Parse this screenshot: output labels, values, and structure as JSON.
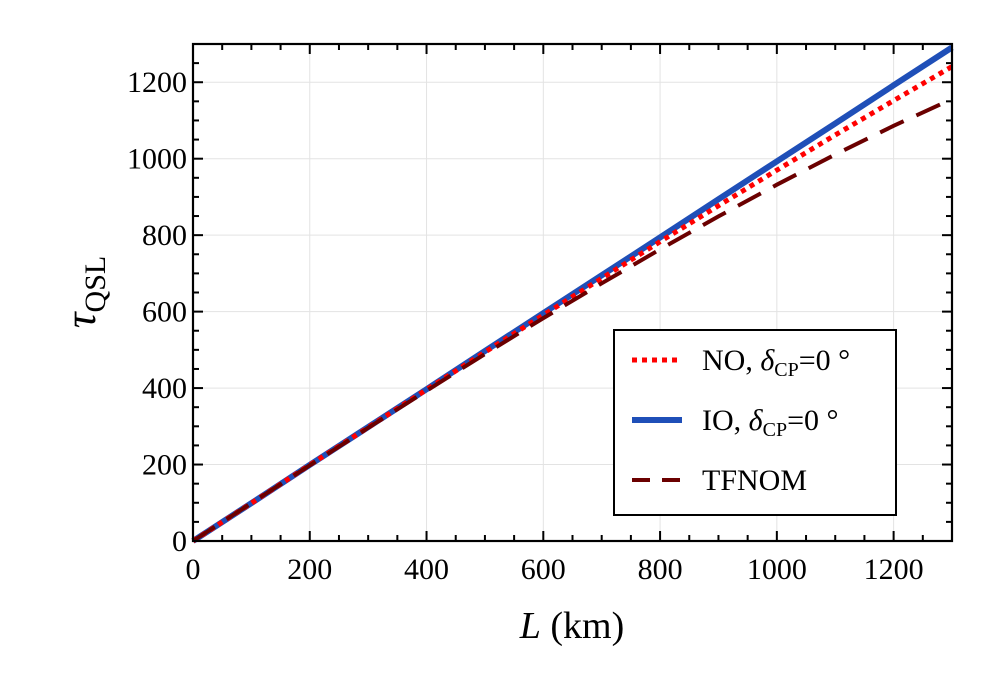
{
  "chart_data": {
    "type": "line",
    "title": "",
    "xlabel": "L (km)",
    "xlabel_var": "L",
    "xlabel_unit": "(km)",
    "ylabel": "τ_QSL",
    "ylabel_main": "τ",
    "ylabel_sub": "QSL",
    "xlim": [
      0,
      1300
    ],
    "ylim": [
      0,
      1300
    ],
    "xticks": [
      0,
      200,
      400,
      600,
      800,
      1000,
      1200
    ],
    "yticks": [
      0,
      200,
      400,
      600,
      800,
      1000,
      1200
    ],
    "grid": true,
    "legend_position": "lower-right",
    "x": [
      0,
      100,
      200,
      300,
      400,
      500,
      600,
      700,
      800,
      900,
      1000,
      1100,
      1200,
      1300
    ],
    "series": [
      {
        "name": "NO, δCP=0 °",
        "label_main": "NO, ",
        "label_delta": "δ",
        "label_sub": "CP",
        "label_tail": "=0 °",
        "color": "#ff0000",
        "style": "dotted",
        "values": [
          0,
          99,
          199,
          297,
          396,
          494,
          591,
          687,
          783,
          877,
          970,
          1062,
          1152,
          1241
        ]
      },
      {
        "name": "IO, δCP=0 °",
        "label_main": "IO, ",
        "label_delta": "δ",
        "label_sub": "CP",
        "label_tail": "=0 °",
        "color": "#1f4fb8",
        "style": "solid",
        "values": [
          0,
          99,
          199,
          298,
          397,
          497,
          596,
          695,
          794,
          894,
          993,
          1092,
          1192,
          1291
        ]
      },
      {
        "name": "TFNOM",
        "label_main": "TFNOM",
        "label_delta": "",
        "label_sub": "",
        "label_tail": "",
        "color": "#6b0000",
        "style": "dashed",
        "values": [
          0,
          99,
          198,
          296,
          393,
          489,
          583,
          674,
          763,
          849,
          932,
          1011,
          1086,
          1156
        ]
      }
    ]
  }
}
